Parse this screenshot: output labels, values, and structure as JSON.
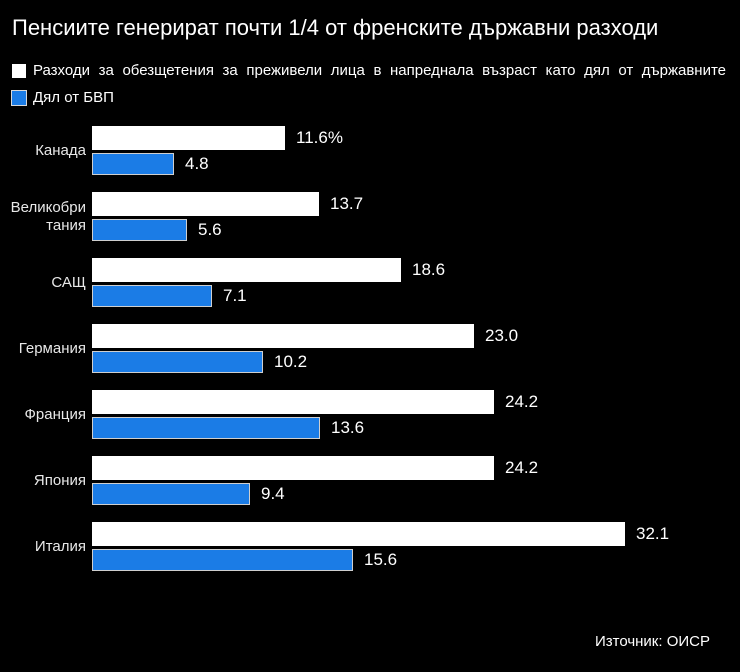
{
  "title": "Пенсиите генерират почти 1/4 от френските държавни разходи",
  "legend": {
    "series1_label": "Разходи за обезщетения за преживели лица в напреднала възраст като дял от държавните",
    "series2_label": "Дял от БВП"
  },
  "source": "Източник: ОИСР",
  "colors": {
    "background": "#000000",
    "bar_government_share": "#ffffff",
    "bar_gdp_share": "#1b7ce6",
    "text": "#ffffff",
    "category_label": "#e8e8e8"
  },
  "chart_data": {
    "type": "bar",
    "orientation": "horizontal",
    "title": "Пенсиите генерират почти 1/4 от френските държавни разходи",
    "categories": [
      "Канада",
      "Великобритания",
      "САЩ",
      "Германия",
      "Франция",
      "Япония",
      "Италия"
    ],
    "category_display": [
      "Канада",
      "Великобри\nтания",
      "САЩ",
      "Германия",
      "Франция",
      "Япония",
      "Италия"
    ],
    "series": [
      {
        "name": "Разходи за обезщетения за преживели лица в напреднала възраст като дял от държавните",
        "values": [
          11.6,
          13.7,
          18.6,
          23.0,
          24.2,
          24.2,
          32.1
        ],
        "color": "#ffffff"
      },
      {
        "name": "Дял от БВП",
        "values": [
          4.8,
          5.6,
          7.1,
          10.2,
          13.6,
          9.4,
          15.6
        ],
        "color": "#1b7ce6"
      }
    ],
    "value_labels": [
      [
        "11.6%",
        "4.8"
      ],
      [
        "13.7",
        "5.6"
      ],
      [
        "18.6",
        "7.1"
      ],
      [
        "23.0",
        "10.2"
      ],
      [
        "24.2",
        "13.6"
      ],
      [
        "24.2",
        "9.4"
      ],
      [
        "32.1",
        "15.6"
      ]
    ],
    "xlim": [
      0,
      32.1
    ],
    "grid": false,
    "legend_position": "top",
    "source_note": "Източник: ОИСР"
  }
}
